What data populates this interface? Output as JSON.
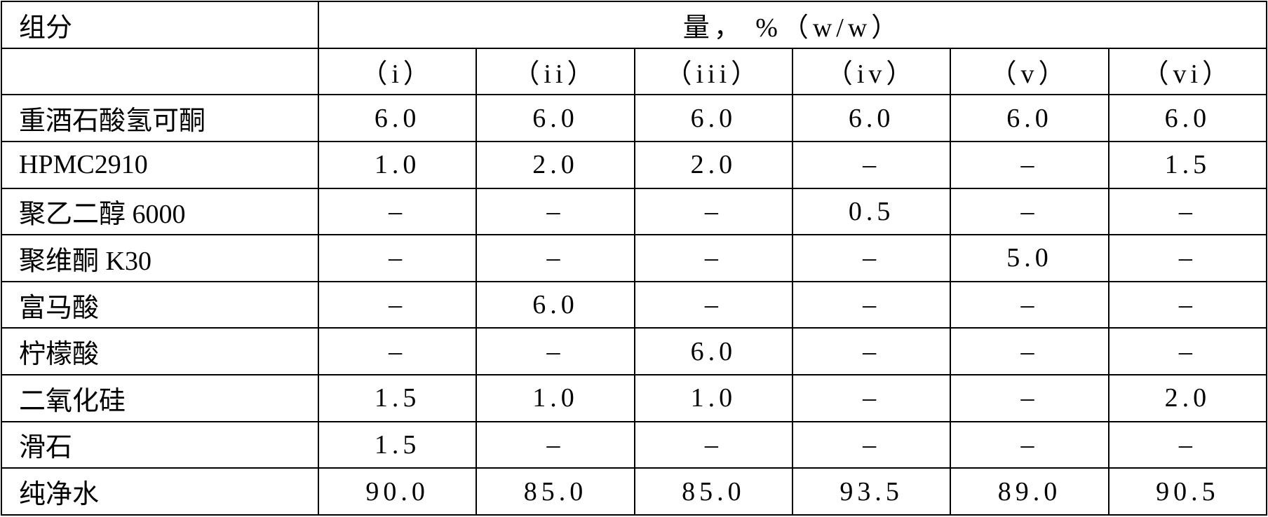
{
  "table": {
    "header": [
      "组分",
      "量， %（w/w）"
    ],
    "columns": [
      "（i）",
      "（ii）",
      "（iii）",
      "（iv）",
      "（v）",
      "（vi）"
    ],
    "rows": [
      [
        "重酒石酸氢可酮",
        "6.0",
        "6.0",
        "6.0",
        "6.0",
        "6.0",
        "6.0"
      ],
      [
        "HPMC2910",
        "1.0",
        "2.0",
        "2.0",
        "–",
        "–",
        "1.5"
      ],
      [
        "聚乙二醇 6000",
        "–",
        "–",
        "–",
        "0.5",
        "–",
        "–"
      ],
      [
        "聚维酮 K30",
        "–",
        "–",
        "–",
        "–",
        "5.0",
        "–"
      ],
      [
        "富马酸",
        "–",
        "6.0",
        "–",
        "–",
        "–",
        "–"
      ],
      [
        "柠檬酸",
        "–",
        "–",
        "6.0",
        "–",
        "–",
        "–"
      ],
      [
        "二氧化硅",
        "1.5",
        "1.0",
        "1.0",
        "–",
        "–",
        "2.0"
      ],
      [
        "滑石",
        "1.5",
        "–",
        "–",
        "–",
        "–",
        "–"
      ],
      [
        "纯净水",
        "90.0",
        "85.0",
        "85.0",
        "93.5",
        "89.0",
        "90.5"
      ]
    ]
  }
}
